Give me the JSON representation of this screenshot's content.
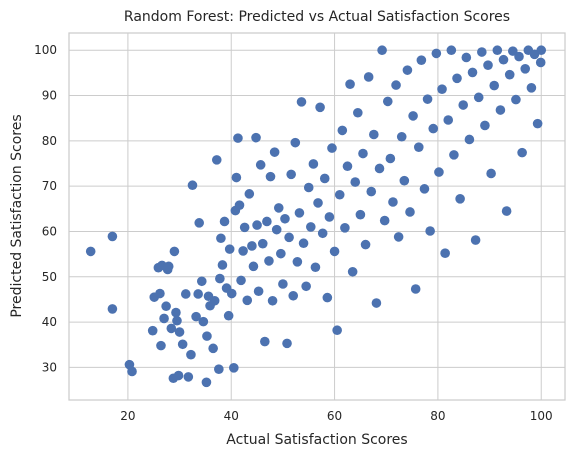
{
  "chart_data": {
    "type": "scatter",
    "title": "Random Forest: Predicted vs Actual Satisfaction Scores",
    "xlabel": "Actual Satisfaction Scores",
    "ylabel": "Predicted Satisfaction Scores",
    "xlim": [
      8.6,
      104.6
    ],
    "ylim": [
      22.8,
      103.8
    ],
    "xticks": [
      20,
      40,
      60,
      80,
      100
    ],
    "yticks": [
      30,
      40,
      50,
      60,
      70,
      80,
      90,
      100
    ],
    "grid": true,
    "legend": "none",
    "marker_color": "#4c72b0",
    "points": [
      [
        12.8,
        55.6
      ],
      [
        17,
        58.9
      ],
      [
        17,
        42.9
      ],
      [
        20.3,
        30.6
      ],
      [
        20.8,
        29.1
      ],
      [
        24.8,
        38.1
      ],
      [
        25.1,
        45.5
      ],
      [
        25.9,
        52
      ],
      [
        26.2,
        46.3
      ],
      [
        26.4,
        34.8
      ],
      [
        26.6,
        52.5
      ],
      [
        27,
        40.8
      ],
      [
        27.4,
        43.5
      ],
      [
        27.7,
        51.6
      ],
      [
        27.9,
        52.3
      ],
      [
        28.4,
        38.6
      ],
      [
        28.8,
        27.6
      ],
      [
        29,
        55.6
      ],
      [
        29.3,
        42.1
      ],
      [
        29.5,
        40.3
      ],
      [
        29.8,
        28.2
      ],
      [
        30,
        37.8
      ],
      [
        30.6,
        35.1
      ],
      [
        31.2,
        46.2
      ],
      [
        31.7,
        27.9
      ],
      [
        32.2,
        32.8
      ],
      [
        32.5,
        70.2
      ],
      [
        33.2,
        41.2
      ],
      [
        33.6,
        46.2
      ],
      [
        33.8,
        61.9
      ],
      [
        34.3,
        49
      ],
      [
        34.6,
        40.1
      ],
      [
        35.2,
        26.7
      ],
      [
        35.3,
        36.9
      ],
      [
        35.6,
        45.7
      ],
      [
        35.9,
        43.6
      ],
      [
        36.5,
        34.2
      ],
      [
        36.8,
        44.7
      ],
      [
        37.2,
        75.8
      ],
      [
        37.6,
        29.6
      ],
      [
        37.8,
        49.6
      ],
      [
        38,
        58.5
      ],
      [
        38.3,
        52.6
      ],
      [
        38.7,
        62.2
      ],
      [
        39.1,
        47.5
      ],
      [
        39.5,
        41.4
      ],
      [
        39.7,
        56.1
      ],
      [
        40.1,
        46.3
      ],
      [
        40.5,
        29.9
      ],
      [
        40.8,
        64.6
      ],
      [
        41,
        71.9
      ],
      [
        41.3,
        80.6
      ],
      [
        41.6,
        65.8
      ],
      [
        41.9,
        49.2
      ],
      [
        42.3,
        55.7
      ],
      [
        42.6,
        60.9
      ],
      [
        43.1,
        44.8
      ],
      [
        43.5,
        68.3
      ],
      [
        44,
        56.8
      ],
      [
        44.3,
        52.3
      ],
      [
        44.8,
        80.7
      ],
      [
        45,
        61.4
      ],
      [
        45.3,
        46.8
      ],
      [
        45.7,
        74.7
      ],
      [
        46.1,
        57.3
      ],
      [
        46.5,
        35.7
      ],
      [
        46.9,
        62.2
      ],
      [
        47.3,
        53.5
      ],
      [
        47.6,
        72.1
      ],
      [
        48,
        44.7
      ],
      [
        48.4,
        77.5
      ],
      [
        48.8,
        60.4
      ],
      [
        49.2,
        65.2
      ],
      [
        49.6,
        55.1
      ],
      [
        50,
        48.4
      ],
      [
        50.4,
        62.8
      ],
      [
        50.8,
        35.3
      ],
      [
        51.2,
        58.7
      ],
      [
        51.6,
        72.6
      ],
      [
        52,
        45.8
      ],
      [
        52.4,
        79.6
      ],
      [
        52.8,
        53.3
      ],
      [
        53.2,
        64.1
      ],
      [
        53.6,
        88.6
      ],
      [
        54,
        57.4
      ],
      [
        54.5,
        47.9
      ],
      [
        55,
        69.7
      ],
      [
        55.4,
        61
      ],
      [
        55.9,
        74.9
      ],
      [
        56.3,
        52.1
      ],
      [
        56.8,
        66.3
      ],
      [
        57.2,
        87.4
      ],
      [
        57.7,
        59.6
      ],
      [
        58.1,
        71.7
      ],
      [
        58.6,
        45.4
      ],
      [
        59,
        63.2
      ],
      [
        59.5,
        78.4
      ],
      [
        60,
        55.6
      ],
      [
        60.5,
        38.2
      ],
      [
        61,
        68.1
      ],
      [
        61.5,
        82.3
      ],
      [
        62,
        60.8
      ],
      [
        62.5,
        74.4
      ],
      [
        63,
        92.5
      ],
      [
        63.5,
        51.1
      ],
      [
        64,
        70.9
      ],
      [
        64.5,
        86.2
      ],
      [
        65,
        63.7
      ],
      [
        65.5,
        77.2
      ],
      [
        66,
        57.1
      ],
      [
        66.6,
        94.1
      ],
      [
        67.1,
        68.8
      ],
      [
        67.6,
        81.4
      ],
      [
        68.1,
        44.2
      ],
      [
        68.7,
        73.9
      ],
      [
        69.2,
        100
      ],
      [
        69.7,
        62.4
      ],
      [
        70.3,
        88.7
      ],
      [
        70.8,
        76.1
      ],
      [
        71.3,
        66.5
      ],
      [
        71.9,
        92.3
      ],
      [
        72.4,
        58.8
      ],
      [
        73,
        80.9
      ],
      [
        73.5,
        71.2
      ],
      [
        74.1,
        95.6
      ],
      [
        74.6,
        64.3
      ],
      [
        75.2,
        85.5
      ],
      [
        75.7,
        47.3
      ],
      [
        76.3,
        78.6
      ],
      [
        76.8,
        97.8
      ],
      [
        77.4,
        69.4
      ],
      [
        78,
        89.2
      ],
      [
        78.5,
        60.1
      ],
      [
        79.1,
        82.7
      ],
      [
        79.7,
        99.3
      ],
      [
        80.2,
        73.1
      ],
      [
        80.8,
        91.4
      ],
      [
        81.4,
        55.2
      ],
      [
        82,
        84.6
      ],
      [
        82.6,
        100
      ],
      [
        83.1,
        76.9
      ],
      [
        83.7,
        93.8
      ],
      [
        84.3,
        67.2
      ],
      [
        84.9,
        87.9
      ],
      [
        85.5,
        98.4
      ],
      [
        86.1,
        80.3
      ],
      [
        86.7,
        95.1
      ],
      [
        87.3,
        58.1
      ],
      [
        87.9,
        89.6
      ],
      [
        88.5,
        99.6
      ],
      [
        89.1,
        83.4
      ],
      [
        89.7,
        96.7
      ],
      [
        90.3,
        72.8
      ],
      [
        90.9,
        92.2
      ],
      [
        91.5,
        100
      ],
      [
        92.1,
        86.8
      ],
      [
        92.7,
        97.9
      ],
      [
        93.3,
        64.5
      ],
      [
        93.9,
        94.6
      ],
      [
        94.5,
        99.8
      ],
      [
        95.1,
        89.1
      ],
      [
        95.7,
        98.6
      ],
      [
        96.3,
        77.4
      ],
      [
        96.9,
        95.9
      ],
      [
        97.5,
        100
      ],
      [
        98.1,
        91.7
      ],
      [
        98.7,
        99.1
      ],
      [
        99.3,
        83.8
      ],
      [
        99.9,
        97.3
      ],
      [
        100,
        100
      ]
    ]
  }
}
